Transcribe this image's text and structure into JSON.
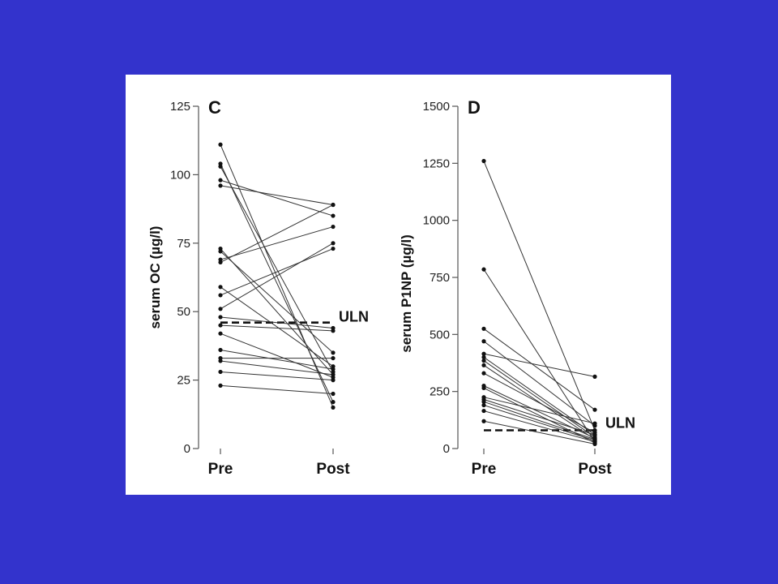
{
  "slide": {
    "background": "#3333cc",
    "panel_background": "#ffffff"
  },
  "chart_data": [
    {
      "type": "line",
      "panel": "C",
      "ylabel": "serum OC (µg/l)",
      "categories": [
        "Pre",
        "Post"
      ],
      "ylim": [
        0,
        125
      ],
      "yticks": [
        0,
        25,
        50,
        75,
        100,
        125
      ],
      "reference": {
        "label": "ULN",
        "value": 46,
        "style": "dashed"
      },
      "pairs": [
        [
          111,
          15
        ],
        [
          104,
          17
        ],
        [
          103,
          28
        ],
        [
          98,
          85
        ],
        [
          96,
          89
        ],
        [
          73,
          27
        ],
        [
          72,
          35
        ],
        [
          69,
          81
        ],
        [
          68,
          89
        ],
        [
          59,
          30
        ],
        [
          56,
          73
        ],
        [
          51,
          75
        ],
        [
          48,
          44
        ],
        [
          45,
          43
        ],
        [
          42,
          26
        ],
        [
          36,
          29
        ],
        [
          33,
          33
        ],
        [
          32,
          27
        ],
        [
          28,
          25
        ],
        [
          23,
          20
        ]
      ]
    },
    {
      "type": "line",
      "panel": "D",
      "ylabel": "serum P1NP (µg/l)",
      "categories": [
        "Pre",
        "Post"
      ],
      "ylim": [
        0,
        1500
      ],
      "yticks": [
        0,
        250,
        500,
        750,
        1000,
        1250,
        1500
      ],
      "reference": {
        "label": "ULN",
        "value": 80,
        "style": "dashed"
      },
      "pairs": [
        [
          1260,
          80
        ],
        [
          785,
          30
        ],
        [
          525,
          170
        ],
        [
          470,
          100
        ],
        [
          415,
          315
        ],
        [
          400,
          60
        ],
        [
          385,
          50
        ],
        [
          365,
          40
        ],
        [
          330,
          70
        ],
        [
          275,
          45
        ],
        [
          265,
          25
        ],
        [
          225,
          110
        ],
        [
          215,
          60
        ],
        [
          205,
          40
        ],
        [
          190,
          35
        ],
        [
          165,
          30
        ],
        [
          120,
          20
        ]
      ]
    }
  ]
}
